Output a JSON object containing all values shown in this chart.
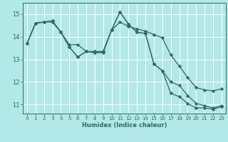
{
  "title": "",
  "xlabel": "Humidex (Indice chaleur)",
  "bg_color": "#b3e8e8",
  "grid_color": "#ffffff",
  "line_color": "#2e6b60",
  "xlim": [
    -0.5,
    23.5
  ],
  "ylim": [
    10.6,
    15.5
  ],
  "yticks": [
    11,
    12,
    13,
    14,
    15
  ],
  "xticks": [
    0,
    1,
    2,
    3,
    4,
    5,
    6,
    7,
    8,
    9,
    10,
    11,
    12,
    13,
    14,
    15,
    16,
    17,
    18,
    19,
    20,
    21,
    22,
    23
  ],
  "line1_x": [
    0,
    1,
    2,
    3,
    4,
    5,
    6,
    7,
    8,
    9,
    10,
    11,
    12,
    13,
    14,
    15,
    16,
    17,
    18,
    19,
    20,
    21,
    22,
    23
  ],
  "line1_y": [
    13.7,
    14.6,
    14.65,
    14.65,
    14.2,
    13.65,
    13.65,
    13.35,
    13.35,
    13.35,
    14.3,
    14.65,
    14.45,
    14.35,
    14.25,
    14.1,
    13.95,
    13.2,
    12.7,
    12.2,
    11.75,
    11.65,
    11.6,
    11.7
  ],
  "line2_x": [
    0,
    1,
    2,
    3,
    4,
    5,
    6,
    7,
    8,
    9,
    10,
    11,
    12,
    13,
    14,
    15,
    16,
    17,
    18,
    19,
    20,
    21,
    22,
    23
  ],
  "line2_y": [
    13.7,
    14.6,
    14.65,
    14.7,
    14.2,
    13.55,
    13.1,
    13.35,
    13.3,
    13.3,
    14.3,
    15.1,
    14.55,
    14.2,
    14.15,
    12.8,
    12.5,
    12.0,
    11.85,
    11.4,
    11.05,
    10.95,
    10.85,
    10.95
  ],
  "line3_x": [
    0,
    1,
    2,
    3,
    4,
    5,
    6,
    7,
    8,
    9,
    10,
    11,
    12,
    13,
    14,
    15,
    16,
    17,
    18,
    19,
    20,
    21,
    22,
    23
  ],
  "line3_y": [
    13.7,
    14.6,
    14.65,
    14.7,
    14.2,
    13.55,
    13.1,
    13.35,
    13.3,
    13.3,
    14.3,
    15.1,
    14.55,
    14.2,
    14.15,
    12.8,
    12.5,
    11.5,
    11.35,
    11.05,
    10.85,
    10.85,
    10.8,
    10.9
  ]
}
